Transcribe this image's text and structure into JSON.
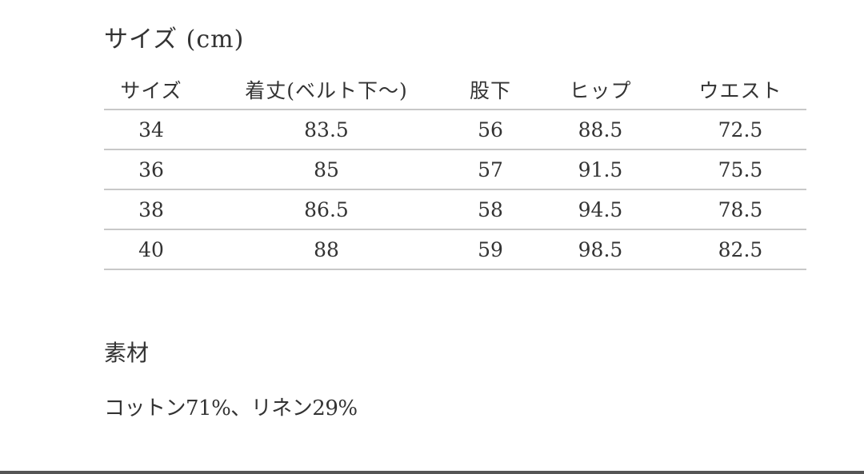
{
  "size_title": "サイズ (cm)",
  "table": {
    "headers": [
      "サイズ",
      "着丈(ベルト下〜)",
      "股下",
      "ヒップ",
      "ウエスト"
    ],
    "rows": [
      [
        "34",
        "83.5",
        "56",
        "88.5",
        "72.5"
      ],
      [
        "36",
        "85",
        "57",
        "91.5",
        "75.5"
      ],
      [
        "38",
        "86.5",
        "58",
        "94.5",
        "78.5"
      ],
      [
        "40",
        "88",
        "59",
        "98.5",
        "82.5"
      ]
    ]
  },
  "material": {
    "title": "素材",
    "text": "コットン71%、リネン29%"
  }
}
